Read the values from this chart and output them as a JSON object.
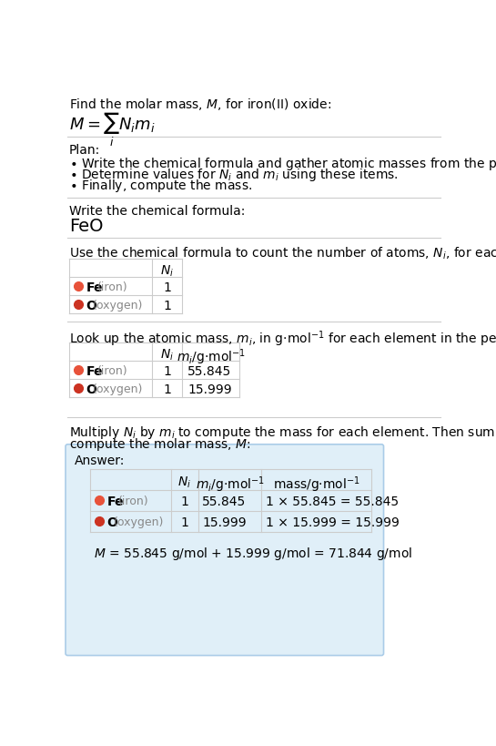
{
  "bg_color": "#ffffff",
  "text_color": "#000000",
  "gray_text": "#888888",
  "fe_color": "#e8523a",
  "o_color": "#cc3322",
  "answer_bg": "#e0eff8",
  "answer_border": "#aacce8",
  "table_border": "#cccccc",
  "elements_display": [
    [
      "Fe",
      "iron"
    ],
    [
      "O",
      "oxygen"
    ]
  ],
  "elem_colors": [
    "#e8523a",
    "#cc3322"
  ],
  "N_i": [
    1,
    1
  ],
  "m_i": [
    "55.845",
    "15.999"
  ],
  "mass_expr": [
    "1 × 55.845 = 55.845",
    "1 × 15.999 = 15.999"
  ],
  "final_eq": "$M$ = 55.845 g/mol + 15.999 g/mol = 71.844 g/mol",
  "fs": 10,
  "fs_feo": 14
}
